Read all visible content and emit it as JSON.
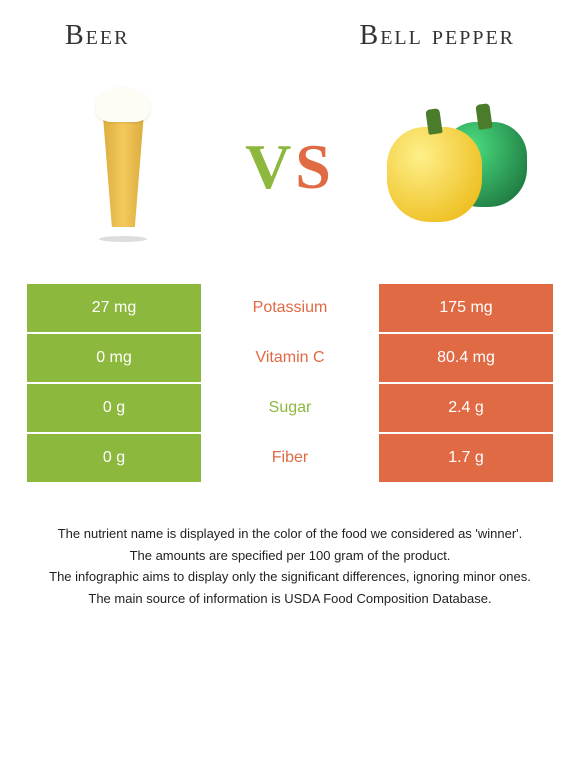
{
  "header": {
    "left_title": "Beer",
    "right_title": "Bell pepper"
  },
  "vs": {
    "v": "V",
    "s": "S"
  },
  "colors": {
    "left_bg": "#8cb83e",
    "right_bg": "#e06a44",
    "left_nutrient": "#8cb83e",
    "right_nutrient": "#e06a44"
  },
  "rows": [
    {
      "left": "27 mg",
      "nutrient": "Potassium",
      "right": "175 mg",
      "winner": "right"
    },
    {
      "left": "0 mg",
      "nutrient": "Vitamin C",
      "right": "80.4 mg",
      "winner": "right"
    },
    {
      "left": "0 g",
      "nutrient": "Sugar",
      "right": "2.4 g",
      "winner": "left"
    },
    {
      "left": "0 g",
      "nutrient": "Fiber",
      "right": "1.7 g",
      "winner": "right"
    }
  ],
  "footnotes": [
    "The nutrient name is displayed in the color of the food we considered as 'winner'.",
    "The amounts are specified per 100 gram of the product.",
    "The infographic aims to display only the significant differences, ignoring minor ones.",
    "The main source of information is USDA Food Composition Database."
  ]
}
